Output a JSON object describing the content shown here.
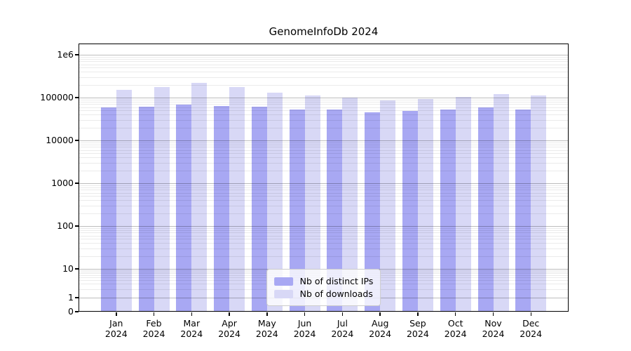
{
  "title": "GenomeInfoDb 2024",
  "chart_data": {
    "type": "bar",
    "title": "GenomeInfoDb 2024",
    "x_months": [
      "Jan",
      "Feb",
      "Mar",
      "Apr",
      "May",
      "Jun",
      "Jul",
      "Aug",
      "Sep",
      "Oct",
      "Nov",
      "Dec"
    ],
    "x_year": "2024",
    "series": [
      {
        "name": "Nb of distinct IPs",
        "color": "#a8a8f3",
        "values": [
          59000,
          62000,
          68500,
          63500,
          62000,
          52600,
          52600,
          45300,
          49300,
          53200,
          59600,
          52600
        ]
      },
      {
        "name": "Nb of downloads",
        "color": "#d8d8f6",
        "values": [
          150000,
          174000,
          218000,
          178000,
          129000,
          113000,
          101000,
          87000,
          93000,
          105000,
          121000,
          112000
        ]
      }
    ],
    "y_axis": {
      "scale": "log-with-zero",
      "ticks": [
        {
          "label": "1e6",
          "value": 1000000
        },
        {
          "label": "100000",
          "value": 100000
        },
        {
          "label": "10000",
          "value": 10000
        },
        {
          "label": "1000",
          "value": 1000
        },
        {
          "label": "100",
          "value": 100
        },
        {
          "label": "10",
          "value": 10
        },
        {
          "label": "1",
          "value": 1
        },
        {
          "label": "0",
          "value": 0
        }
      ]
    },
    "grid": true,
    "legend_position": "lower center"
  }
}
